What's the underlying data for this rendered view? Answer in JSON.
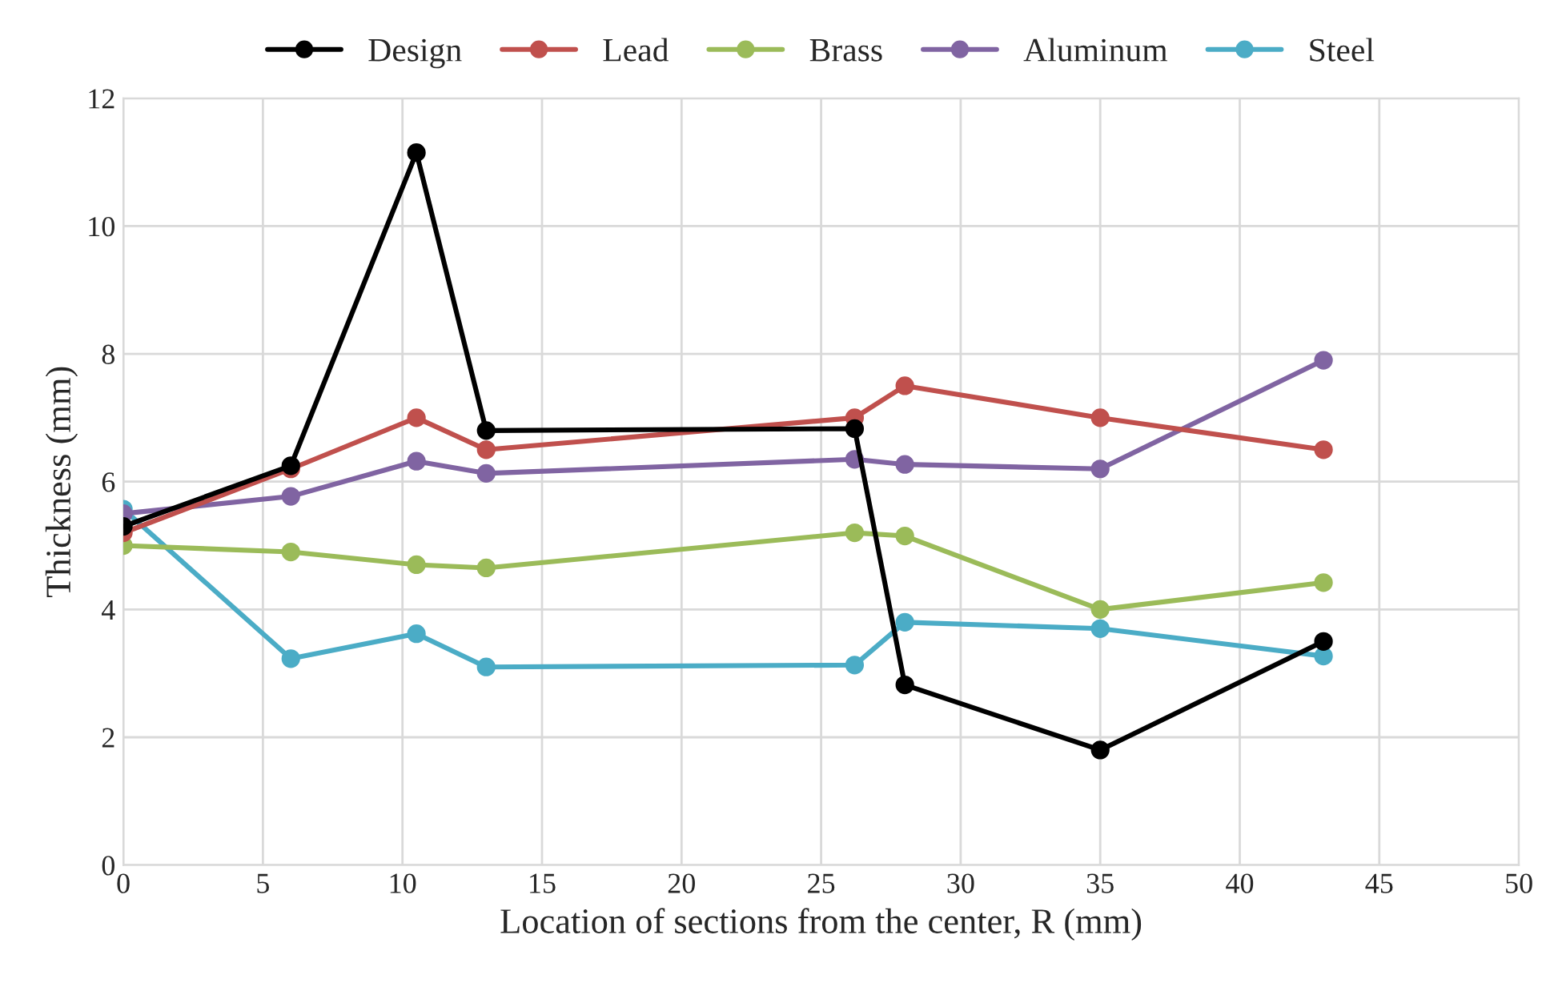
{
  "chart_data": {
    "type": "line",
    "xlabel": "Location of sections from the center, R (mm)",
    "ylabel": "Thickness (mm)",
    "x": [
      0,
      6,
      10.5,
      13,
      26.2,
      28,
      35,
      43
    ],
    "series": [
      {
        "name": "Design",
        "color": "#000000",
        "values": [
          5.3,
          6.25,
          11.15,
          6.8,
          6.83,
          2.82,
          1.8,
          3.5
        ]
      },
      {
        "name": "Lead",
        "color": "#c0504d",
        "values": [
          5.2,
          6.2,
          7.0,
          6.5,
          7.0,
          7.5,
          7.0,
          6.5
        ]
      },
      {
        "name": "Brass",
        "color": "#9bbb59",
        "values": [
          5.0,
          4.9,
          4.7,
          4.65,
          5.2,
          5.15,
          4.0,
          4.42
        ]
      },
      {
        "name": "Aluminum",
        "color": "#8064a2",
        "values": [
          5.5,
          5.77,
          6.32,
          6.13,
          6.35,
          6.27,
          6.2,
          7.9
        ]
      },
      {
        "name": "Steel",
        "color": "#4bacc6",
        "values": [
          5.57,
          3.23,
          3.62,
          3.1,
          3.13,
          3.8,
          3.7,
          3.27
        ]
      }
    ],
    "xlim": [
      0,
      50
    ],
    "xticks": [
      0,
      5,
      10,
      15,
      20,
      25,
      30,
      35,
      40,
      45,
      50
    ],
    "ylim": [
      0,
      12
    ],
    "yticks": [
      0,
      2,
      4,
      6,
      8,
      10,
      12
    ],
    "grid": true,
    "legend": "top",
    "marker": "circle",
    "line_style": "solid"
  }
}
